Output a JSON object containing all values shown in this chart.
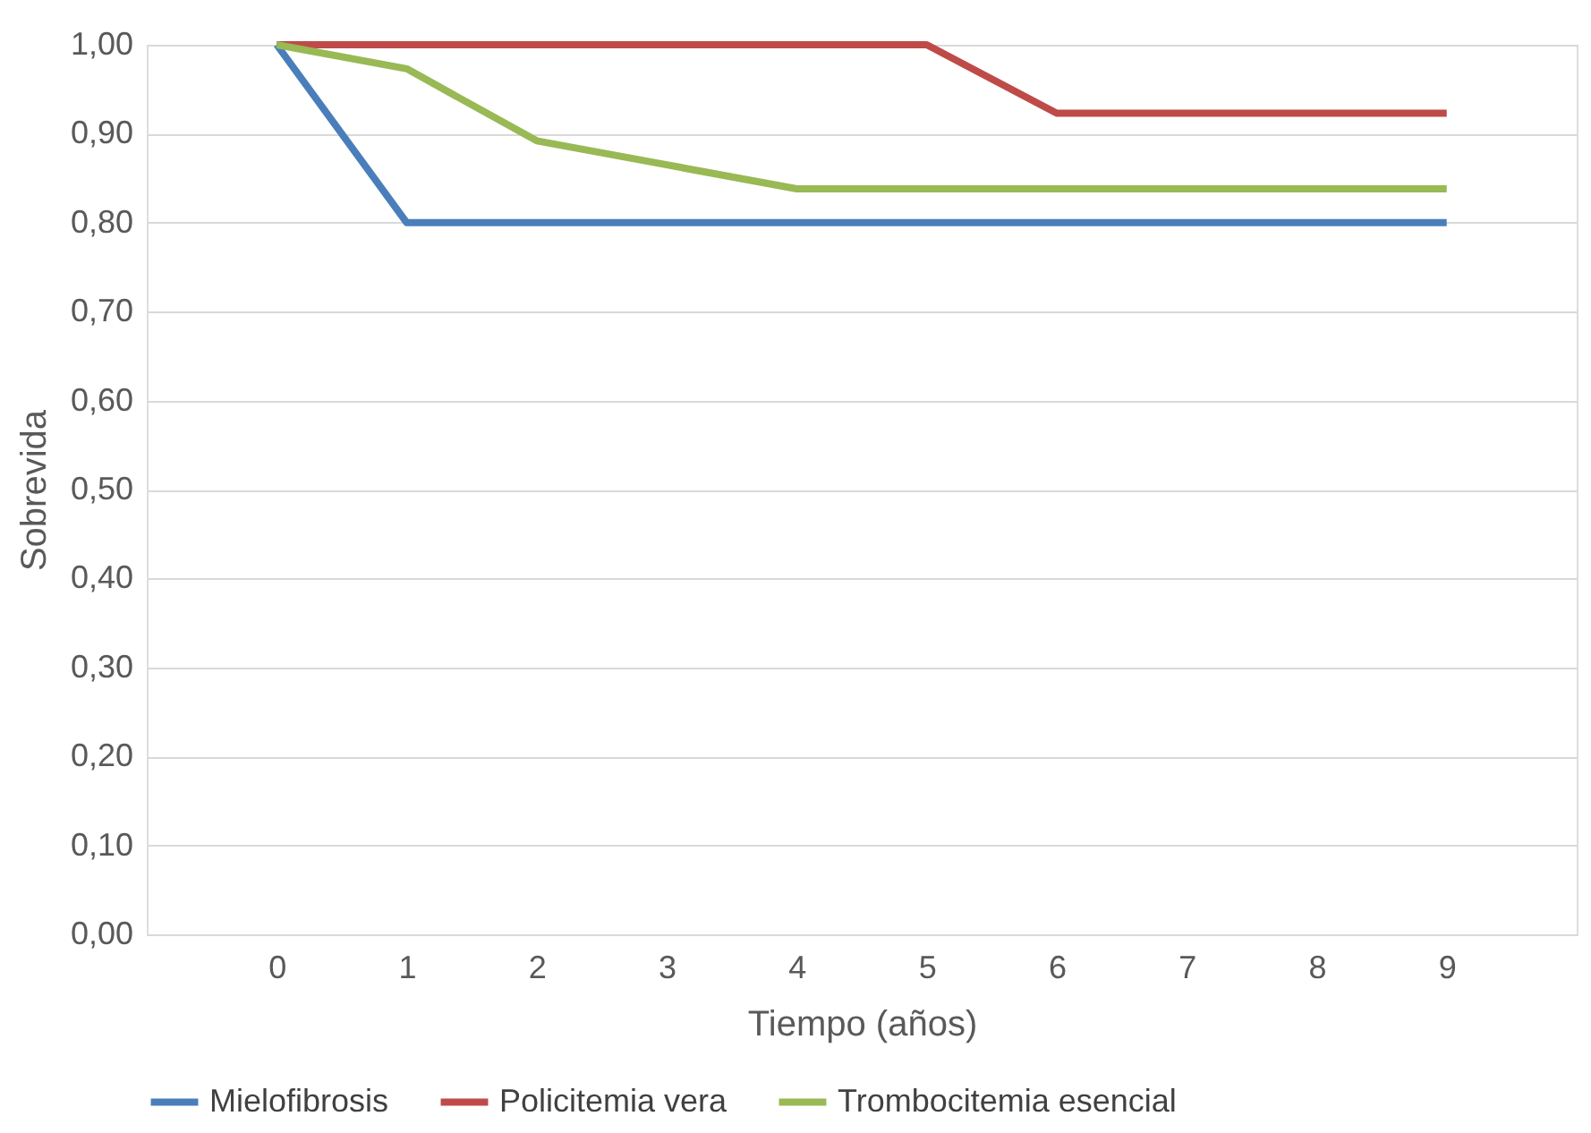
{
  "chart_data": {
    "type": "line",
    "xlabel": "Tiempo (años)",
    "ylabel": "Sobrevida",
    "categories": [
      "0",
      "1",
      "2",
      "3",
      "4",
      "5",
      "6",
      "7",
      "8",
      "9"
    ],
    "series": [
      {
        "name": "Mielofibrosis",
        "color": "#4a7ebb",
        "values": [
          1.0,
          0.8,
          0.8,
          0.8,
          0.8,
          0.8,
          0.8,
          0.8,
          0.8,
          0.8
        ]
      },
      {
        "name": "Policitemia vera",
        "color": "#be4b48",
        "values": [
          1.0,
          1.0,
          1.0,
          1.0,
          1.0,
          1.0,
          0.923,
          0.923,
          0.923,
          0.923
        ]
      },
      {
        "name": "Trombocitemia esencial",
        "color": "#98b954",
        "values": [
          1.0,
          0.973,
          0.892,
          0.865,
          0.838,
          0.838,
          0.838,
          0.838,
          0.838,
          0.838
        ]
      }
    ],
    "ylim": [
      0,
      1
    ],
    "yticks": [
      {
        "value": 0,
        "label": "0,00"
      },
      {
        "value": 0.1,
        "label": "0,10"
      },
      {
        "value": 0.2,
        "label": "0,20"
      },
      {
        "value": 0.3,
        "label": "0,30"
      },
      {
        "value": 0.4,
        "label": "0,40"
      },
      {
        "value": 0.5,
        "label": "0,50"
      },
      {
        "value": 0.6,
        "label": "0,60"
      },
      {
        "value": 0.7,
        "label": "0,70"
      },
      {
        "value": 0.8,
        "label": "0,80"
      },
      {
        "value": 0.9,
        "label": "0,90"
      },
      {
        "value": 1.0,
        "label": "1,00"
      }
    ],
    "grid": "y",
    "legend": "bottom",
    "marker": "none",
    "line_style": "solid"
  }
}
